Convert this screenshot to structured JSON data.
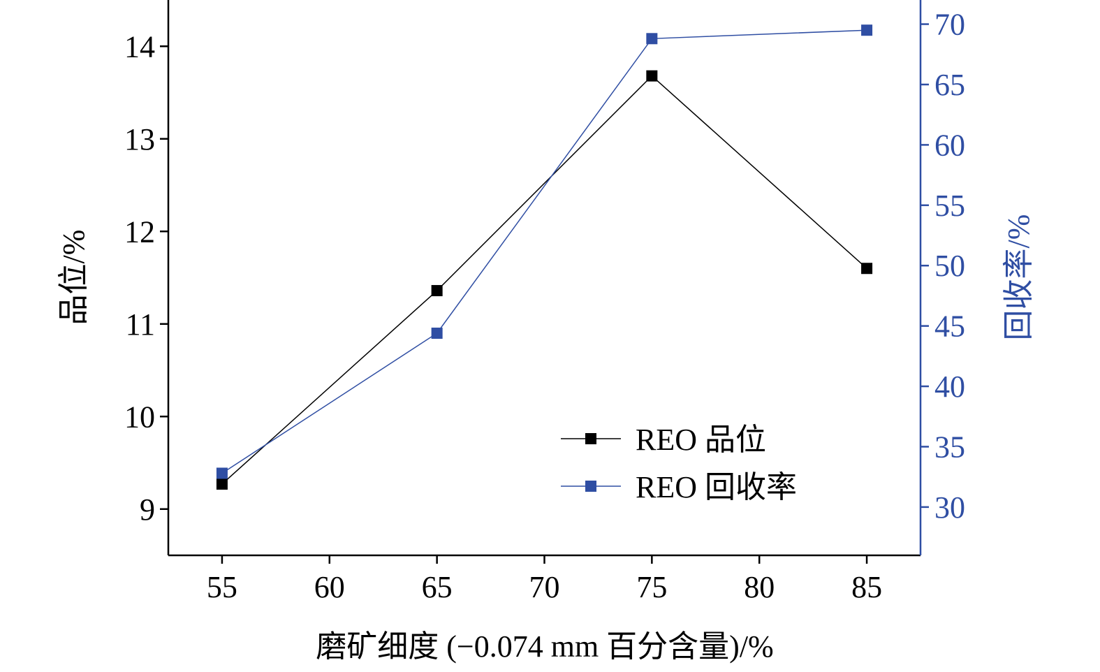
{
  "chart_data": {
    "type": "line",
    "xlabel": "磨矿细度 (−0.074 mm 百分含量)/%",
    "ylabel_left": "品位/%",
    "ylabel_right": "回收率/%",
    "x": [
      55,
      65,
      75,
      85
    ],
    "xlim": [
      52.5,
      87.5
    ],
    "xticks": [
      55,
      60,
      65,
      70,
      75,
      80,
      85
    ],
    "ylim_left": [
      8.5,
      14.5
    ],
    "yticks_left": [
      9,
      10,
      11,
      12,
      13,
      14
    ],
    "ylim_right": [
      26,
      72
    ],
    "yticks_right": [
      30,
      35,
      40,
      45,
      50,
      55,
      60,
      65,
      70
    ],
    "grid": false,
    "legend_position": "bottom-right",
    "series": [
      {
        "name": "REO 品位",
        "axis": "left",
        "color": "#000000",
        "marker": "square",
        "values": [
          9.27,
          11.36,
          13.68,
          11.6
        ]
      },
      {
        "name": "REO 回收率",
        "axis": "right",
        "color": "#2f4ea3",
        "marker": "square",
        "values": [
          32.8,
          44.4,
          68.8,
          69.5
        ]
      }
    ]
  },
  "colors": {
    "left_axis": "#000000",
    "right_axis": "#2f4ea3"
  }
}
